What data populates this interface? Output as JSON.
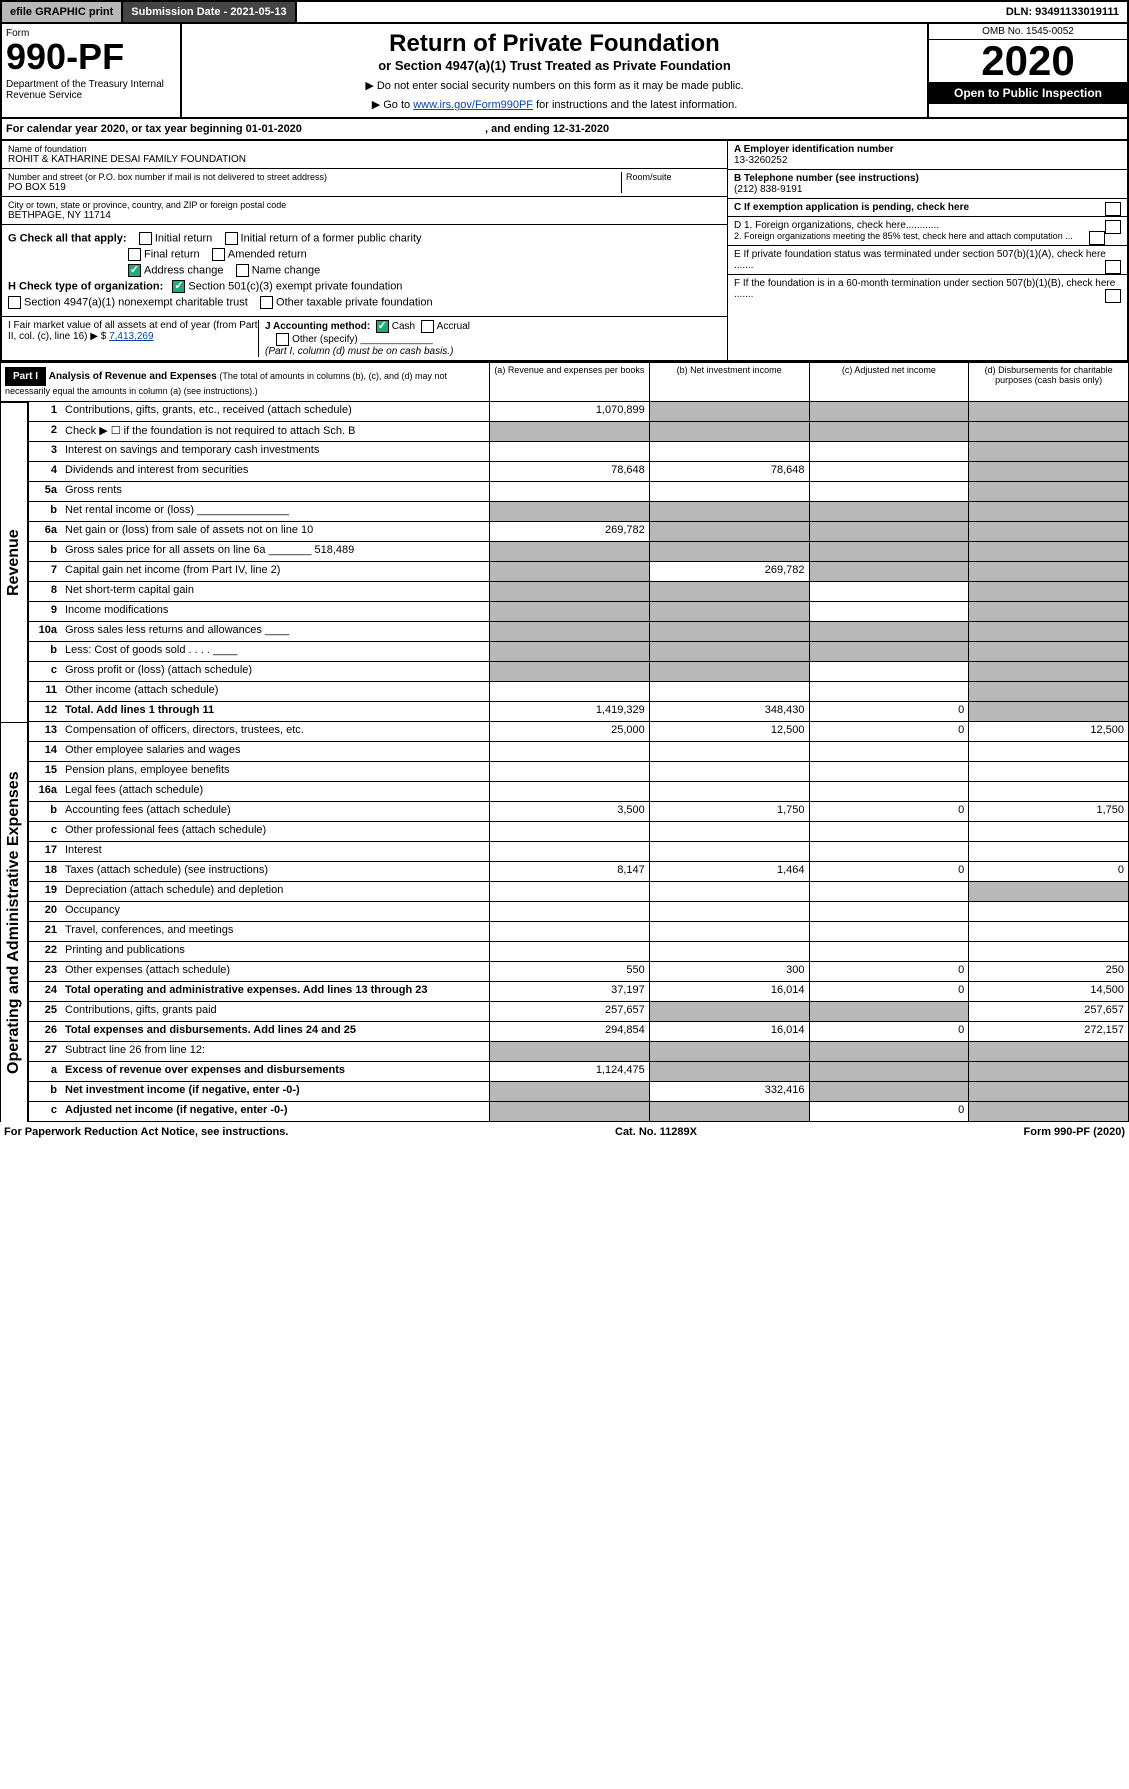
{
  "topbar": {
    "efile": "efile GRAPHIC print",
    "subdate": "Submission Date - 2021-05-13",
    "dln": "DLN: 93491133019111"
  },
  "header": {
    "form_label": "Form",
    "form_no": "990-PF",
    "dept": "Department of the Treasury\nInternal Revenue Service",
    "title": "Return of Private Foundation",
    "subtitle": "or Section 4947(a)(1) Trust Treated as Private Foundation",
    "note1": "▶ Do not enter social security numbers on this form as it may be made public.",
    "note2_pre": "▶ Go to ",
    "note2_link": "www.irs.gov/Form990PF",
    "note2_post": " for instructions and the latest information.",
    "omb": "OMB No. 1545-0052",
    "year": "2020",
    "open": "Open to Public Inspection"
  },
  "calyear": "For calendar year 2020, or tax year beginning 01-01-2020",
  "calyear_end": ", and ending 12-31-2020",
  "foundation": {
    "name_lbl": "Name of foundation",
    "name": "ROHIT & KATHARINE DESAI FAMILY FOUNDATION",
    "addr_lbl": "Number and street (or P.O. box number if mail is not delivered to street address)",
    "addr": "PO BOX 519",
    "room_lbl": "Room/suite",
    "city_lbl": "City or town, state or province, country, and ZIP or foreign postal code",
    "city": "BETHPAGE, NY  11714",
    "ein_lbl": "A Employer identification number",
    "ein": "13-3260252",
    "phone_lbl": "B Telephone number (see instructions)",
    "phone": "(212) 838-9191",
    "c_lbl": "C If exemption application is pending, check here"
  },
  "checks": {
    "g": "G Check all that apply:",
    "g1": "Initial return",
    "g2": "Initial return of a former public charity",
    "g3": "Final return",
    "g4": "Amended return",
    "g5": "Address change",
    "g6": "Name change",
    "h": "H Check type of organization:",
    "h1": "Section 501(c)(3) exempt private foundation",
    "h2": "Section 4947(a)(1) nonexempt charitable trust",
    "h3": "Other taxable private foundation",
    "i": "I Fair market value of all assets at end of year (from Part II, col. (c), line 16) ▶ $",
    "i_val": "7,413,269",
    "j": "J Accounting method:",
    "j1": "Cash",
    "j2": "Accrual",
    "j3": "Other (specify)",
    "j_note": "(Part I, column (d) must be on cash basis.)",
    "d1": "D 1. Foreign organizations, check here............",
    "d2": "2. Foreign organizations meeting the 85% test, check here and attach computation ...",
    "e": "E If private foundation status was terminated under section 507(b)(1)(A), check here .......",
    "f": "F If the foundation is in a 60-month termination under section 507(b)(1)(B), check here ......."
  },
  "part1": {
    "label": "Part I",
    "title": "Analysis of Revenue and Expenses",
    "note": "(The total of amounts in columns (b), (c), and (d) may not necessarily equal the amounts in column (a) (see instructions).)",
    "col_a": "(a) Revenue and expenses per books",
    "col_b": "(b) Net investment income",
    "col_c": "(c) Adjusted net income",
    "col_d": "(d) Disbursements for charitable purposes (cash basis only)"
  },
  "side_revenue": "Revenue",
  "side_expenses": "Operating and Administrative Expenses",
  "rows": [
    {
      "n": "1",
      "d": "Contributions, gifts, grants, etc., received (attach schedule)",
      "a": "1,070,899",
      "ga": false,
      "gb": true,
      "gc": true,
      "gd": true
    },
    {
      "n": "2",
      "d": "Check ▶ ☐ if the foundation is not required to attach Sch. B",
      "ga": true,
      "gb": true,
      "gc": true,
      "gd": true
    },
    {
      "n": "3",
      "d": "Interest on savings and temporary cash investments",
      "gd": true
    },
    {
      "n": "4",
      "d": "Dividends and interest from securities",
      "a": "78,648",
      "b": "78,648",
      "gd": true
    },
    {
      "n": "5a",
      "d": "Gross rents",
      "gd": true
    },
    {
      "n": "b",
      "d": "Net rental income or (loss) _______________",
      "ga": true,
      "gb": true,
      "gc": true,
      "gd": true
    },
    {
      "n": "6a",
      "d": "Net gain or (loss) from sale of assets not on line 10",
      "a": "269,782",
      "gb": true,
      "gc": true,
      "gd": true
    },
    {
      "n": "b",
      "d": "Gross sales price for all assets on line 6a _______ 518,489",
      "ga": true,
      "gb": true,
      "gc": true,
      "gd": true
    },
    {
      "n": "7",
      "d": "Capital gain net income (from Part IV, line 2)",
      "ga": true,
      "b": "269,782",
      "gc": true,
      "gd": true
    },
    {
      "n": "8",
      "d": "Net short-term capital gain",
      "ga": true,
      "gb": true,
      "gd": true
    },
    {
      "n": "9",
      "d": "Income modifications",
      "ga": true,
      "gb": true,
      "gd": true
    },
    {
      "n": "10a",
      "d": "Gross sales less returns and allowances ____",
      "ga": true,
      "gb": true,
      "gc": true,
      "gd": true
    },
    {
      "n": "b",
      "d": "Less: Cost of goods sold  . . . . ____",
      "ga": true,
      "gb": true,
      "gc": true,
      "gd": true
    },
    {
      "n": "c",
      "d": "Gross profit or (loss) (attach schedule)",
      "ga": true,
      "gb": true,
      "gd": true
    },
    {
      "n": "11",
      "d": "Other income (attach schedule)",
      "gd": true
    },
    {
      "n": "12",
      "d": "Total. Add lines 1 through 11",
      "bold": true,
      "a": "1,419,329",
      "b": "348,430",
      "c": "0",
      "gd": true
    }
  ],
  "exp_rows": [
    {
      "n": "13",
      "d": "Compensation of officers, directors, trustees, etc.",
      "a": "25,000",
      "b": "12,500",
      "c": "0",
      "dd": "12,500"
    },
    {
      "n": "14",
      "d": "Other employee salaries and wages"
    },
    {
      "n": "15",
      "d": "Pension plans, employee benefits"
    },
    {
      "n": "16a",
      "d": "Legal fees (attach schedule)"
    },
    {
      "n": "b",
      "d": "Accounting fees (attach schedule)",
      "a": "3,500",
      "b": "1,750",
      "c": "0",
      "dd": "1,750"
    },
    {
      "n": "c",
      "d": "Other professional fees (attach schedule)"
    },
    {
      "n": "17",
      "d": "Interest"
    },
    {
      "n": "18",
      "d": "Taxes (attach schedule) (see instructions)",
      "a": "8,147",
      "b": "1,464",
      "c": "0",
      "dd": "0"
    },
    {
      "n": "19",
      "d": "Depreciation (attach schedule) and depletion",
      "gd": true
    },
    {
      "n": "20",
      "d": "Occupancy"
    },
    {
      "n": "21",
      "d": "Travel, conferences, and meetings"
    },
    {
      "n": "22",
      "d": "Printing and publications"
    },
    {
      "n": "23",
      "d": "Other expenses (attach schedule)",
      "a": "550",
      "b": "300",
      "c": "0",
      "dd": "250"
    },
    {
      "n": "24",
      "d": "Total operating and administrative expenses. Add lines 13 through 23",
      "bold": true,
      "a": "37,197",
      "b": "16,014",
      "c": "0",
      "dd": "14,500"
    },
    {
      "n": "25",
      "d": "Contributions, gifts, grants paid",
      "a": "257,657",
      "gb": true,
      "gc": true,
      "dd": "257,657"
    },
    {
      "n": "26",
      "d": "Total expenses and disbursements. Add lines 24 and 25",
      "bold": true,
      "a": "294,854",
      "b": "16,014",
      "c": "0",
      "dd": "272,157"
    },
    {
      "n": "27",
      "d": "Subtract line 26 from line 12:",
      "ga": true,
      "gb": true,
      "gc": true,
      "gd": true
    },
    {
      "n": "a",
      "d": "Excess of revenue over expenses and disbursements",
      "bold": true,
      "a": "1,124,475",
      "gb": true,
      "gc": true,
      "gd": true
    },
    {
      "n": "b",
      "d": "Net investment income (if negative, enter -0-)",
      "bold": true,
      "ga": true,
      "b": "332,416",
      "gc": true,
      "gd": true
    },
    {
      "n": "c",
      "d": "Adjusted net income (if negative, enter -0-)",
      "bold": true,
      "ga": true,
      "gb": true,
      "c": "0",
      "gd": true
    }
  ],
  "footer": {
    "left": "For Paperwork Reduction Act Notice, see instructions.",
    "mid": "Cat. No. 11289X",
    "right": "Form 990-PF (2020)"
  }
}
